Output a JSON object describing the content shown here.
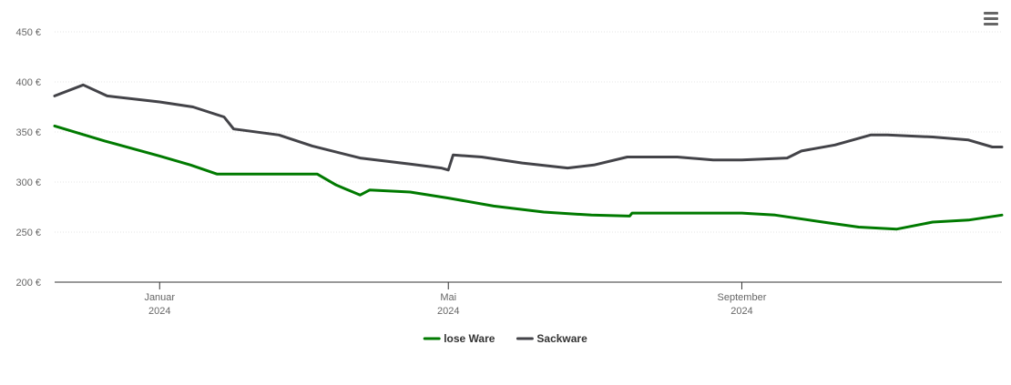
{
  "chart_data": {
    "type": "line",
    "y_ticks": [
      "200 €",
      "250 €",
      "300 €",
      "350 €",
      "400 €",
      "450 €"
    ],
    "ylim": [
      200,
      450
    ],
    "y_unit": "€",
    "xlim": [
      "2023-11-18",
      "2024-12-19"
    ],
    "x_ticks": [
      {
        "date": "2024-01-01",
        "label_top": "Januar",
        "label_bottom": "2024"
      },
      {
        "date": "2024-05-01",
        "label_top": "Mai",
        "label_bottom": "2024"
      },
      {
        "date": "2024-09-01",
        "label_top": "September",
        "label_bottom": "2024"
      }
    ],
    "grid": true,
    "legend_position": "bottom-center",
    "series": [
      {
        "name": "lose Ware",
        "color": "#007a00",
        "points": [
          [
            "2023-11-18",
            356
          ],
          [
            "2023-12-09",
            341
          ],
          [
            "2024-01-01",
            326
          ],
          [
            "2024-01-14",
            317
          ],
          [
            "2024-01-25",
            308
          ],
          [
            "2024-02-15",
            308
          ],
          [
            "2024-03-07",
            308
          ],
          [
            "2024-03-15",
            297
          ],
          [
            "2024-03-25",
            287
          ],
          [
            "2024-03-29",
            292
          ],
          [
            "2024-04-15",
            290
          ],
          [
            "2024-05-01",
            284
          ],
          [
            "2024-05-20",
            276
          ],
          [
            "2024-06-10",
            270
          ],
          [
            "2024-06-30",
            267
          ],
          [
            "2024-07-16",
            266
          ],
          [
            "2024-07-17",
            269
          ],
          [
            "2024-08-10",
            269
          ],
          [
            "2024-09-01",
            269
          ],
          [
            "2024-09-15",
            267
          ],
          [
            "2024-10-05",
            260
          ],
          [
            "2024-10-20",
            255
          ],
          [
            "2024-11-05",
            253
          ],
          [
            "2024-11-20",
            260
          ],
          [
            "2024-12-05",
            262
          ],
          [
            "2024-12-19",
            267
          ]
        ]
      },
      {
        "name": "Sackware",
        "color": "#434348",
        "points": [
          [
            "2023-11-18",
            386
          ],
          [
            "2023-11-30",
            397
          ],
          [
            "2023-12-10",
            386
          ],
          [
            "2024-01-01",
            380
          ],
          [
            "2024-01-15",
            375
          ],
          [
            "2024-01-28",
            365
          ],
          [
            "2024-02-01",
            353
          ],
          [
            "2024-02-20",
            347
          ],
          [
            "2024-03-05",
            336
          ],
          [
            "2024-03-25",
            324
          ],
          [
            "2024-04-15",
            318
          ],
          [
            "2024-04-28",
            314
          ],
          [
            "2024-05-01",
            312
          ],
          [
            "2024-05-03",
            327
          ],
          [
            "2024-05-15",
            325
          ],
          [
            "2024-06-01",
            319
          ],
          [
            "2024-06-20",
            314
          ],
          [
            "2024-07-01",
            317
          ],
          [
            "2024-07-15",
            325
          ],
          [
            "2024-08-05",
            325
          ],
          [
            "2024-08-20",
            322
          ],
          [
            "2024-09-01",
            322
          ],
          [
            "2024-09-20",
            324
          ],
          [
            "2024-09-26",
            331
          ],
          [
            "2024-10-10",
            337
          ],
          [
            "2024-10-25",
            347
          ],
          [
            "2024-11-01",
            347
          ],
          [
            "2024-11-20",
            345
          ],
          [
            "2024-12-05",
            342
          ],
          [
            "2024-12-15",
            335
          ],
          [
            "2024-12-19",
            335
          ]
        ]
      }
    ]
  },
  "icons": {
    "menu": "hamburger-menu-icon"
  }
}
